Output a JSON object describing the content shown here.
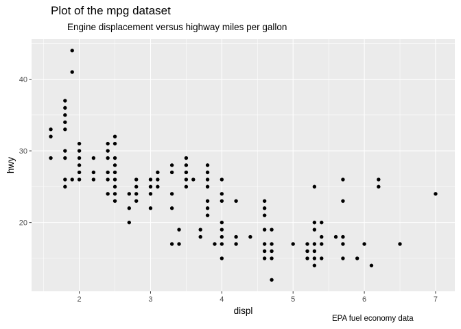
{
  "chart_data": {
    "type": "scatter",
    "title": "Plot of the mpg dataset",
    "subtitle": "Engine displacement versus highway miles per gallon",
    "caption": "EPA fuel economy data",
    "xlabel": "displ",
    "ylabel": "hwy",
    "xlim": [
      1.33,
      7.27
    ],
    "ylim": [
      10.4,
      45.6
    ],
    "xticks": [
      2,
      3,
      4,
      5,
      6,
      7
    ],
    "yticks": [
      20,
      30,
      40
    ],
    "grid": true,
    "legend": "none",
    "colors": {
      "panel": "#ebebeb",
      "grid_major": "#ffffff",
      "point": "#000000",
      "tick_text": "#4d4d4d"
    },
    "points": [
      [
        1.6,
        33
      ],
      [
        1.6,
        32
      ],
      [
        1.6,
        29
      ],
      [
        1.8,
        37
      ],
      [
        1.8,
        36
      ],
      [
        1.8,
        35
      ],
      [
        1.8,
        34
      ],
      [
        1.8,
        33
      ],
      [
        1.8,
        30
      ],
      [
        1.8,
        29
      ],
      [
        1.8,
        26
      ],
      [
        1.8,
        25
      ],
      [
        1.9,
        44
      ],
      [
        1.9,
        41
      ],
      [
        1.9,
        26
      ],
      [
        2.0,
        31
      ],
      [
        2.0,
        30
      ],
      [
        2.0,
        29
      ],
      [
        2.0,
        28
      ],
      [
        2.0,
        27
      ],
      [
        2.0,
        26
      ],
      [
        2.2,
        29
      ],
      [
        2.2,
        27
      ],
      [
        2.2,
        26
      ],
      [
        2.4,
        31
      ],
      [
        2.4,
        30
      ],
      [
        2.4,
        29
      ],
      [
        2.4,
        27
      ],
      [
        2.4,
        26
      ],
      [
        2.4,
        24
      ],
      [
        2.5,
        32
      ],
      [
        2.5,
        31
      ],
      [
        2.5,
        29
      ],
      [
        2.5,
        28
      ],
      [
        2.5,
        27
      ],
      [
        2.5,
        26
      ],
      [
        2.5,
        25
      ],
      [
        2.5,
        24
      ],
      [
        2.5,
        23
      ],
      [
        2.7,
        24
      ],
      [
        2.7,
        22
      ],
      [
        2.7,
        20
      ],
      [
        2.8,
        26
      ],
      [
        2.8,
        25
      ],
      [
        2.8,
        24
      ],
      [
        2.8,
        23
      ],
      [
        3.0,
        26
      ],
      [
        3.0,
        25
      ],
      [
        3.0,
        24
      ],
      [
        3.0,
        22
      ],
      [
        3.1,
        27
      ],
      [
        3.1,
        26
      ],
      [
        3.1,
        25
      ],
      [
        3.3,
        28
      ],
      [
        3.3,
        27
      ],
      [
        3.3,
        24
      ],
      [
        3.3,
        22
      ],
      [
        3.3,
        17
      ],
      [
        3.4,
        19
      ],
      [
        3.4,
        17
      ],
      [
        3.5,
        29
      ],
      [
        3.5,
        28
      ],
      [
        3.5,
        27
      ],
      [
        3.5,
        26
      ],
      [
        3.5,
        25
      ],
      [
        3.6,
        26
      ],
      [
        3.7,
        19
      ],
      [
        3.7,
        18
      ],
      [
        3.8,
        28
      ],
      [
        3.8,
        27
      ],
      [
        3.8,
        26
      ],
      [
        3.8,
        25
      ],
      [
        3.8,
        23
      ],
      [
        3.8,
        22
      ],
      [
        3.8,
        21
      ],
      [
        3.9,
        17
      ],
      [
        4.0,
        26
      ],
      [
        4.0,
        24
      ],
      [
        4.0,
        23
      ],
      [
        4.0,
        20
      ],
      [
        4.0,
        19
      ],
      [
        4.0,
        18
      ],
      [
        4.0,
        17
      ],
      [
        4.0,
        15
      ],
      [
        4.2,
        23
      ],
      [
        4.2,
        18
      ],
      [
        4.2,
        17
      ],
      [
        4.4,
        18
      ],
      [
        4.6,
        23
      ],
      [
        4.6,
        22
      ],
      [
        4.6,
        21
      ],
      [
        4.6,
        19
      ],
      [
        4.6,
        17
      ],
      [
        4.6,
        16
      ],
      [
        4.6,
        15
      ],
      [
        4.7,
        19
      ],
      [
        4.7,
        17
      ],
      [
        4.7,
        16
      ],
      [
        4.7,
        15
      ],
      [
        4.7,
        12
      ],
      [
        5.0,
        17
      ],
      [
        5.2,
        17
      ],
      [
        5.2,
        16
      ],
      [
        5.2,
        15
      ],
      [
        5.3,
        25
      ],
      [
        5.3,
        20
      ],
      [
        5.3,
        19
      ],
      [
        5.3,
        17
      ],
      [
        5.3,
        16
      ],
      [
        5.3,
        15
      ],
      [
        5.3,
        14
      ],
      [
        5.4,
        20
      ],
      [
        5.4,
        18
      ],
      [
        5.4,
        17
      ],
      [
        5.4,
        15
      ],
      [
        5.6,
        18
      ],
      [
        5.7,
        26
      ],
      [
        5.7,
        23
      ],
      [
        5.7,
        18
      ],
      [
        5.7,
        17
      ],
      [
        5.7,
        15
      ],
      [
        5.9,
        15
      ],
      [
        6.0,
        17
      ],
      [
        6.1,
        14
      ],
      [
        6.2,
        26
      ],
      [
        6.2,
        25
      ],
      [
        6.5,
        17
      ],
      [
        7.0,
        24
      ]
    ]
  }
}
